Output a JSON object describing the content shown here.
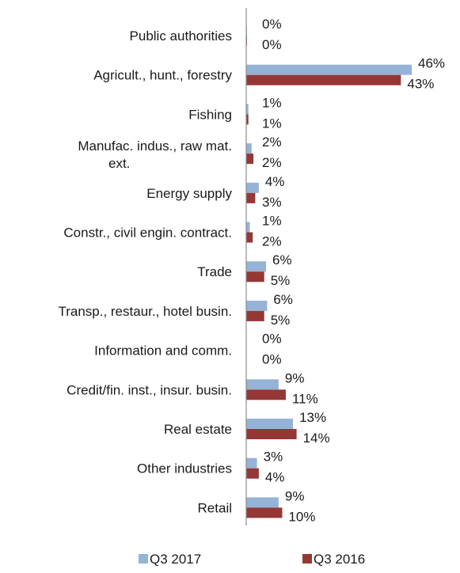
{
  "chart_data": {
    "type": "bar",
    "orientation": "horizontal",
    "categories": [
      "Public authorities",
      "Agricult., hunt., forestry",
      "Fishing",
      "Manufac. indus., raw mat. ext.",
      "Energy supply",
      "Constr., civil engin. contract.",
      "Trade",
      "Transp., restaur., hotel busin.",
      "Information and comm.",
      "Credit/fin. inst., insur. busin.",
      "Real estate",
      "Other industries",
      "Retail"
    ],
    "series": [
      {
        "name": "Q3 2017",
        "color": "#95b3d7",
        "values": [
          0.2,
          46,
          0.6,
          1.5,
          3.5,
          1,
          5.5,
          5.8,
          0.1,
          9,
          13,
          3,
          9
        ],
        "labels": [
          "0%",
          "46%",
          "1%",
          "2%",
          "4%",
          "1%",
          "6%",
          "6%",
          "0%",
          "9%",
          "13%",
          "3%",
          "9%"
        ]
      },
      {
        "name": "Q3 2016",
        "color": "#953735",
        "values": [
          0.2,
          43,
          0.6,
          2,
          2.5,
          1.8,
          5,
          5,
          0.1,
          11,
          14,
          3.5,
          10
        ],
        "labels": [
          "0%",
          "43%",
          "1%",
          "2%",
          "3%",
          "2%",
          "5%",
          "5%",
          "0%",
          "11%",
          "14%",
          "4%",
          "10%"
        ]
      }
    ],
    "xlim": [
      0,
      46
    ],
    "value_labels": true,
    "grid": false,
    "legend": "bottom"
  }
}
